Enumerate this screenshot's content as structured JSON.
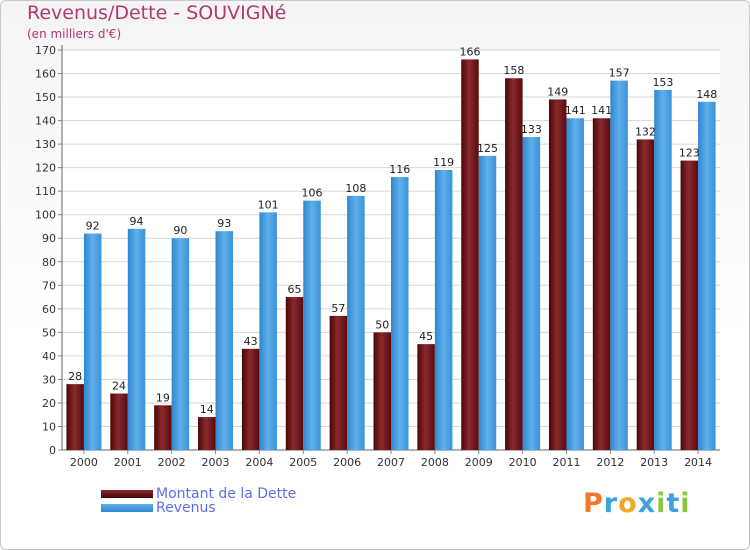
{
  "header": {
    "title": "Revenus/Dette - SOUVIGNé",
    "subtitle": "(en milliers d'€)"
  },
  "legend": [
    {
      "label": "Montant de la Dette",
      "color": "#6b0e12"
    },
    {
      "label": "Revenus",
      "color": "#4a9fe2"
    }
  ],
  "logo": {
    "text": "Proxiti",
    "letters": [
      "P",
      "r",
      "o",
      "x",
      "i",
      "t",
      "i"
    ],
    "colors": [
      "#f07a2a",
      "#3aa3e0",
      "#f0a82a",
      "#3aa3e0",
      "#8cc63f",
      "#3aa3e0",
      "#8cc63f"
    ]
  },
  "chart_data": {
    "type": "bar",
    "title": "Revenus/Dette - SOUVIGNé",
    "ylabel": "(en milliers d'€)",
    "categories": [
      "2000",
      "2001",
      "2002",
      "2003",
      "2004",
      "2005",
      "2006",
      "2007",
      "2008",
      "2009",
      "2010",
      "2011",
      "2012",
      "2013",
      "2014"
    ],
    "series": [
      {
        "name": "Montant de la Dette",
        "color": "#6b0e12",
        "values": [
          28,
          24,
          19,
          14,
          43,
          65,
          57,
          50,
          45,
          166,
          158,
          149,
          141,
          132,
          123
        ]
      },
      {
        "name": "Revenus",
        "color": "#4a9fe2",
        "values": [
          92,
          94,
          90,
          93,
          101,
          106,
          108,
          116,
          119,
          125,
          133,
          141,
          157,
          153,
          148
        ]
      }
    ],
    "ylim": [
      0,
      170
    ],
    "yticks": [
      0,
      10,
      20,
      30,
      40,
      50,
      60,
      70,
      80,
      90,
      100,
      110,
      120,
      130,
      140,
      150,
      160,
      170
    ],
    "grid": true
  }
}
